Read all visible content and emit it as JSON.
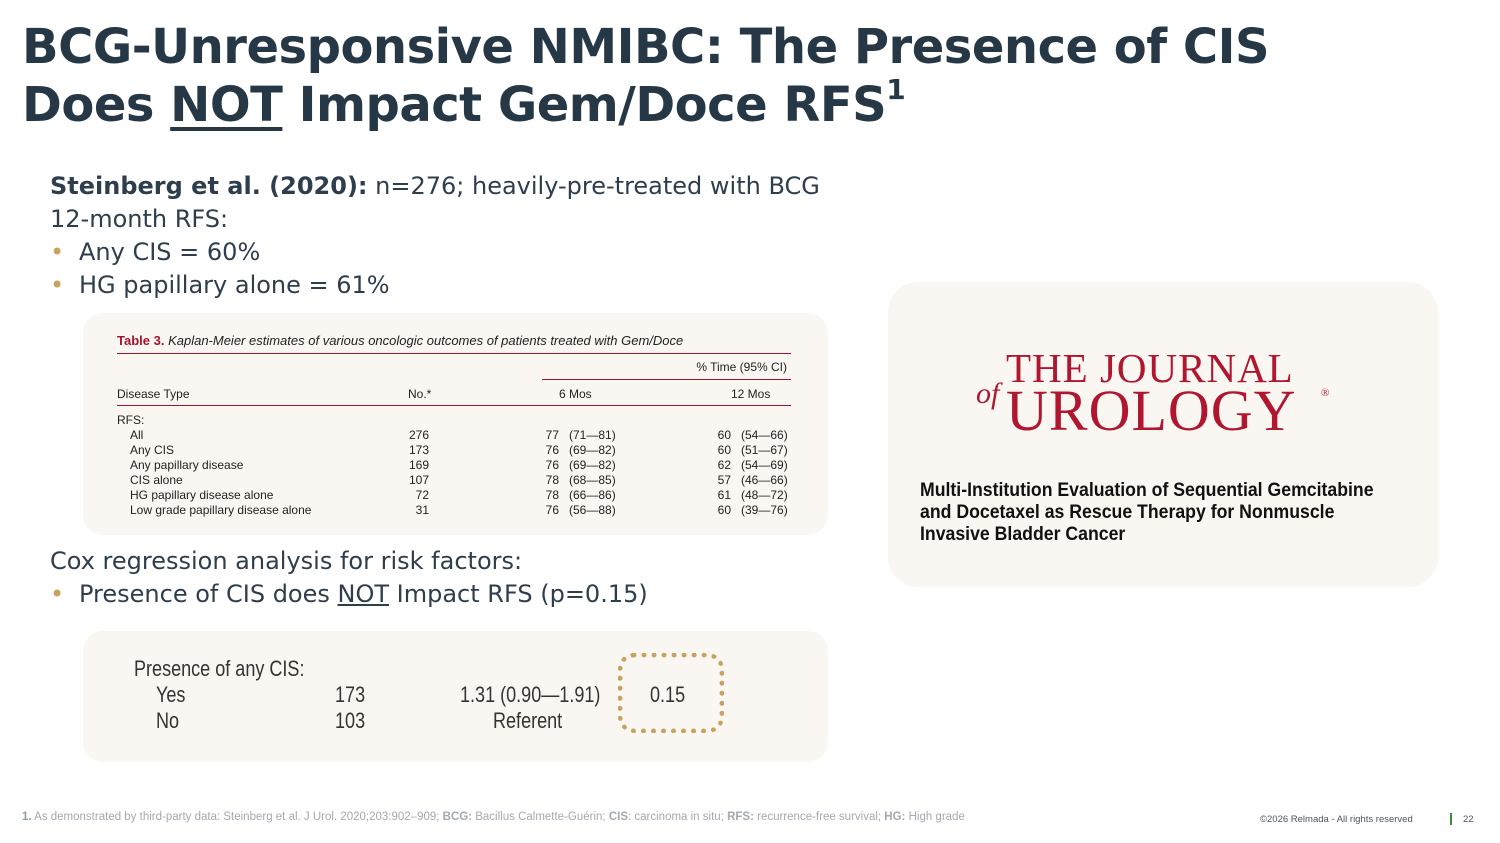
{
  "title": {
    "line1": "BCG-Unresponsive NMIBC: The Presence of CIS",
    "line2_pre": "Does ",
    "line2_underlined": "NOT",
    "line2_post": " Impact Gem/Doce RFS",
    "sup": "1"
  },
  "intro": {
    "study_bold": "Steinberg et al. (2020):",
    "study_rest": " n=276; heavily-pre-treated with BCG",
    "rfs_label": "12-month RFS:",
    "bullets": [
      "Any CIS = 60%",
      "HG papillary alone = 61%"
    ]
  },
  "table3": {
    "caption_label": "Table 3.",
    "caption_text": " Kaplan-Meier estimates of various oncologic outcomes of patients treated with Gem/Doce",
    "group_header": "% Time (95% CI)",
    "col_type": "Disease Type",
    "col_no": "No.*",
    "col_6": "6 Mos",
    "col_12": "12 Mos",
    "section": "RFS:",
    "rows": [
      {
        "type": "All",
        "no": "276",
        "m6": "77",
        "ci6": "(71—81)",
        "m12": "60",
        "ci12": "(54—66)"
      },
      {
        "type": "Any CIS",
        "no": "173",
        "m6": "76",
        "ci6": "(69—82)",
        "m12": "60",
        "ci12": "(51—67)"
      },
      {
        "type": "Any papillary disease",
        "no": "169",
        "m6": "76",
        "ci6": "(69—82)",
        "m12": "62",
        "ci12": "(54—69)"
      },
      {
        "type": "CIS alone",
        "no": "107",
        "m6": "78",
        "ci6": "(68—85)",
        "m12": "57",
        "ci12": "(46—66)"
      },
      {
        "type": "HG papillary disease alone",
        "no": "72",
        "m6": "78",
        "ci6": "(66—86)",
        "m12": "61",
        "ci12": "(48—72)"
      },
      {
        "type": "Low grade papillary disease alone",
        "no": "31",
        "m6": "76",
        "ci6": "(56—88)",
        "m12": "60",
        "ci12": "(39—76)"
      }
    ]
  },
  "cox": {
    "heading": "Cox regression analysis for risk factors:",
    "bullet_pre": "Presence of CIS does ",
    "bullet_underlined": "NOT",
    "bullet_post": " Impact RFS (p=0.15)"
  },
  "cox_table": {
    "label": "Presence of any CIS:",
    "yes_label": "Yes",
    "yes_n": "173",
    "yes_hr": "1.31 (0.90—1.91)",
    "yes_p": "0.15",
    "no_label": "No",
    "no_n": "103",
    "no_hr": "Referent",
    "highlight_color": "#c9a25f"
  },
  "journal": {
    "line1": "THE JOURNAL",
    "of": "of",
    "line2": "UROLOGY",
    "reg": "®",
    "article_title": "Multi-Institution Evaluation of Sequential Gemcitabine and Docetaxel as Rescue Therapy for Nonmuscle Invasive Bladder Cancer",
    "brand_color": "#b0162f"
  },
  "footer": {
    "num": "1.",
    "t1": " As demonstrated by third-party data: Steinberg et al. J Urol. 2020;203:902–909; ",
    "b1": "BCG:",
    "t2": " Bacillus Calmette-Guérin; ",
    "b2": "CIS",
    "t3": ": carcinoma in situ; ",
    "b3": "RFS:",
    "t4": " recurrence-free survival; ",
    "b4": "HG:",
    "t5": " High grade",
    "copyright": "©2026 Relmada - All rights reserved",
    "page": "22"
  }
}
